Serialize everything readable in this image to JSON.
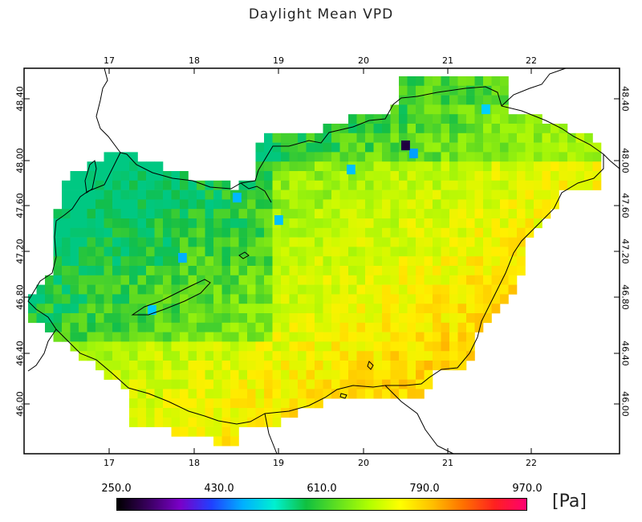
{
  "title": "Daylight Mean VPD",
  "map": {
    "lon_labels": [
      "17",
      "18",
      "19",
      "20",
      "21",
      "22"
    ],
    "lat_labels": [
      "48.40",
      "48.00",
      "47.60",
      "47.20",
      "46.80",
      "46.40",
      "46.00"
    ]
  },
  "colorbar": {
    "labels": [
      "250.0",
      "430.0",
      "610.0",
      "790.0",
      "970.0"
    ],
    "unit": "[Pa]",
    "colors": [
      "#000000",
      "#3a0060",
      "#7a00c8",
      "#2040ff",
      "#00b0ff",
      "#00f0d0",
      "#10c040",
      "#60e020",
      "#b0ff00",
      "#ffff00",
      "#ffc000",
      "#ff7000",
      "#ff2020",
      "#ff0070"
    ]
  }
}
